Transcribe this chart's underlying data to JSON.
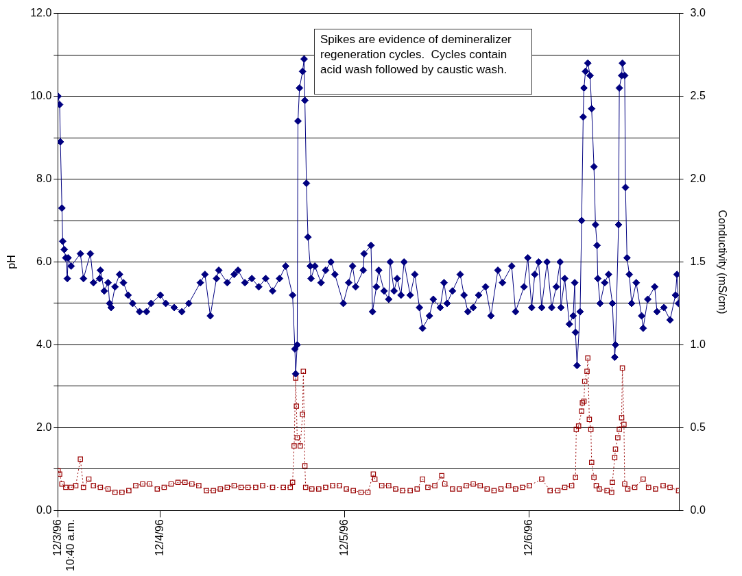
{
  "chart_data": {
    "type": "line",
    "ylabel": "pH",
    "y2label": "Conductivity (mS/cm)",
    "annotations": [
      "Spikes are evidence of demineralizer regeneration cycles.  Cycles contain acid wash followed by caustic wash."
    ],
    "xlim": [
      "1996-12-03T10:40",
      "1996-12-06T19:30"
    ],
    "xticks": [
      {
        "value": "1996-12-03T10:40",
        "label": "12/3/96\n10:40 a.m."
      },
      {
        "value": "1996-12-04",
        "label": "12/4/96"
      },
      {
        "value": "1996-12-05",
        "label": "12/5/96"
      },
      {
        "value": "1996-12-06",
        "label": "12/6/96"
      }
    ],
    "ylim": [
      0,
      12
    ],
    "yticks": [
      {
        "value": 0,
        "label": "0.0"
      },
      {
        "value": 1,
        "label": null
      },
      {
        "value": 2,
        "label": "2.0"
      },
      {
        "value": 3,
        "label": null
      },
      {
        "value": 4,
        "label": "4.0"
      },
      {
        "value": 5,
        "label": null
      },
      {
        "value": 6,
        "label": "6.0"
      },
      {
        "value": 7,
        "label": null
      },
      {
        "value": 8,
        "label": "8.0"
      },
      {
        "value": 9,
        "label": null
      },
      {
        "value": 10,
        "label": "10.0"
      },
      {
        "value": 11,
        "label": null
      },
      {
        "value": 12,
        "label": "12.0"
      }
    ],
    "y2lim": [
      0,
      3
    ],
    "y2ticks": [
      {
        "value": 0,
        "label": "0.0"
      },
      {
        "value": 0.5,
        "label": "0.5"
      },
      {
        "value": 1,
        "label": "1.0"
      },
      {
        "value": 1.5,
        "label": "1.5"
      },
      {
        "value": 2,
        "label": "2.0"
      },
      {
        "value": 2.5,
        "label": "2.5"
      },
      {
        "value": 3,
        "label": "3.0"
      }
    ],
    "grid": "y",
    "legend": false,
    "series": [
      {
        "color": "#000080",
        "marker": "diamond",
        "line_style": "solid",
        "x": [
          "1996-12-03T10:42",
          "1996-12-03T10:54",
          "1996-12-03T11:00",
          "1996-12-03T11:12",
          "1996-12-03T11:18",
          "1996-12-03T11:30",
          "1996-12-03T11:42",
          "1996-12-03T11:54",
          "1996-12-03T12:00",
          "1996-12-03T12:24",
          "1996-12-03T13:36",
          "1996-12-03T14:00",
          "1996-12-03T14:54",
          "1996-12-03T15:18",
          "1996-12-03T16:06",
          "1996-12-03T16:12",
          "1996-12-03T16:42",
          "1996-12-03T17:12",
          "1996-12-03T17:24",
          "1996-12-03T17:36",
          "1996-12-03T18:06",
          "1996-12-03T18:42",
          "1996-12-03T19:12",
          "1996-12-03T19:48",
          "1996-12-03T20:24",
          "1996-12-03T21:18",
          "1996-12-03T22:12",
          "1996-12-03T22:48",
          "1996-12-04T00:00",
          "1996-12-04T00:42",
          "1996-12-04T01:48",
          "1996-12-04T02:48",
          "1996-12-04T03:42",
          "1996-12-04T05:12",
          "1996-12-04T05:48",
          "1996-12-04T06:30",
          "1996-12-04T07:18",
          "1996-12-04T07:36",
          "1996-12-04T08:42",
          "1996-12-04T09:36",
          "1996-12-04T10:06",
          "1996-12-04T11:00",
          "1996-12-04T11:54",
          "1996-12-04T12:48",
          "1996-12-04T13:42",
          "1996-12-04T14:36",
          "1996-12-04T15:30",
          "1996-12-04T16:18",
          "1996-12-04T17:12",
          "1996-12-04T17:30",
          "1996-12-04T17:36",
          "1996-12-04T17:48",
          "1996-12-04T17:54",
          "1996-12-04T18:06",
          "1996-12-04T18:30",
          "1996-12-04T18:42",
          "1996-12-04T18:48",
          "1996-12-04T19:00",
          "1996-12-04T19:12",
          "1996-12-04T19:30",
          "1996-12-04T19:36",
          "1996-12-04T20:06",
          "1996-12-04T20:54",
          "1996-12-04T21:30",
          "1996-12-04T22:12",
          "1996-12-04T22:42",
          "1996-12-04T23:48",
          "1996-12-05T00:30",
          "1996-12-05T01:00",
          "1996-12-05T01:24",
          "1996-12-05T02:24",
          "1996-12-05T02:30",
          "1996-12-05T03:24",
          "1996-12-05T03:36",
          "1996-12-05T04:06",
          "1996-12-05T04:24",
          "1996-12-05T05:06",
          "1996-12-05T05:42",
          "1996-12-05T05:54",
          "1996-12-05T06:24",
          "1996-12-05T06:48",
          "1996-12-05T07:18",
          "1996-12-05T07:42",
          "1996-12-05T08:30",
          "1996-12-05T09:06",
          "1996-12-05T09:42",
          "1996-12-05T10:06",
          "1996-12-05T11:00",
          "1996-12-05T11:30",
          "1996-12-05T12:24",
          "1996-12-05T12:54",
          "1996-12-05T13:18",
          "1996-12-05T14:00",
          "1996-12-05T15:00",
          "1996-12-05T15:30",
          "1996-12-05T16:00",
          "1996-12-05T16:42",
          "1996-12-05T17:24",
          "1996-12-05T18:18",
          "1996-12-05T19:00",
          "1996-12-05T19:54",
          "1996-12-05T20:30",
          "1996-12-05T21:42",
          "1996-12-05T22:12",
          "1996-12-05T23:18",
          "1996-12-05T23:48",
          "1996-12-06T00:18",
          "1996-12-06T00:42",
          "1996-12-06T01:12",
          "1996-12-06T01:36",
          "1996-12-06T02:18",
          "1996-12-06T02:54",
          "1996-12-06T03:30",
          "1996-12-06T04:00",
          "1996-12-06T04:06",
          "1996-12-06T04:36",
          "1996-12-06T05:12",
          "1996-12-06T05:42",
          "1996-12-06T05:54",
          "1996-12-06T06:00",
          "1996-12-06T06:12",
          "1996-12-06T06:36",
          "1996-12-06T06:48",
          "1996-12-06T07:00",
          "1996-12-06T07:06",
          "1996-12-06T07:18",
          "1996-12-06T07:36",
          "1996-12-06T07:54",
          "1996-12-06T08:06",
          "1996-12-06T08:24",
          "1996-12-06T08:36",
          "1996-12-06T08:48",
          "1996-12-06T08:54",
          "1996-12-06T09:12",
          "1996-12-06T09:48",
          "1996-12-06T10:18",
          "1996-12-06T10:48",
          "1996-12-06T11:06",
          "1996-12-06T11:12",
          "1996-12-06T11:36",
          "1996-12-06T11:42",
          "1996-12-06T12:00",
          "1996-12-06T12:06",
          "1996-12-06T12:24",
          "1996-12-06T12:30",
          "1996-12-06T12:42",
          "1996-12-06T13:00",
          "1996-12-06T13:18",
          "1996-12-06T13:54",
          "1996-12-06T14:36",
          "1996-12-06T14:48",
          "1996-12-06T15:24",
          "1996-12-06T16:18",
          "1996-12-06T16:36",
          "1996-12-06T17:30",
          "1996-12-06T18:18",
          "1996-12-06T19:00",
          "1996-12-06T19:12",
          "1996-12-06T19:24"
        ],
        "values": [
          10.0,
          9.8,
          8.9,
          7.3,
          6.5,
          6.3,
          6.1,
          5.6,
          6.1,
          5.9,
          6.2,
          5.6,
          6.2,
          5.5,
          5.6,
          5.8,
          5.3,
          5.5,
          5.0,
          4.9,
          5.4,
          5.7,
          5.5,
          5.2,
          5.0,
          4.8,
          4.8,
          5.0,
          5.2,
          5.0,
          4.9,
          4.8,
          5.0,
          5.5,
          5.7,
          4.7,
          5.6,
          5.8,
          5.5,
          5.7,
          5.8,
          5.5,
          5.6,
          5.4,
          5.6,
          5.3,
          5.6,
          5.9,
          5.2,
          3.9,
          3.3,
          4.0,
          9.4,
          10.2,
          10.6,
          10.9,
          9.9,
          7.9,
          6.6,
          5.9,
          5.6,
          5.9,
          5.5,
          5.8,
          6.0,
          5.7,
          5.0,
          5.5,
          5.9,
          5.4,
          5.8,
          6.2,
          6.4,
          4.8,
          5.4,
          5.8,
          5.3,
          5.1,
          6.0,
          5.3,
          5.6,
          5.2,
          6.0,
          5.2,
          5.7,
          4.9,
          4.4,
          4.7,
          5.1,
          4.9,
          5.5,
          5.0,
          5.3,
          5.7,
          5.2,
          4.8,
          4.9,
          5.2,
          5.4,
          4.7,
          5.8,
          5.5,
          5.9,
          4.8,
          5.4,
          6.1,
          4.9,
          5.7,
          6.0,
          4.9,
          6.0,
          4.9,
          5.4,
          6.0,
          4.9,
          5.6,
          4.5,
          4.7,
          5.5,
          4.3,
          3.5,
          4.8,
          7.0,
          9.5,
          10.2,
          10.6,
          10.8,
          10.5,
          9.7,
          8.3,
          6.9,
          6.4,
          5.6,
          5.0,
          5.5,
          5.7,
          5.0,
          3.7,
          4.0,
          6.9,
          10.2,
          10.5,
          10.8,
          10.5,
          7.8,
          6.1,
          5.7,
          5.0,
          5.5,
          4.7,
          4.4,
          5.1,
          5.4,
          4.8,
          4.9,
          4.6,
          5.2,
          5.7,
          5.0
        ]
      },
      {
        "color": "#990000",
        "marker": "square",
        "line_style": "dotted",
        "axis": "y2",
        "x": [
          "1996-12-03T10:42",
          "1996-12-03T10:54",
          "1996-12-03T11:12",
          "1996-12-03T11:42",
          "1996-12-03T12:24",
          "1996-12-03T13:00",
          "1996-12-03T13:36",
          "1996-12-03T14:00",
          "1996-12-03T14:42",
          "1996-12-03T15:18",
          "1996-12-03T16:12",
          "1996-12-03T17:12",
          "1996-12-03T18:06",
          "1996-12-03T19:00",
          "1996-12-03T19:54",
          "1996-12-03T20:48",
          "1996-12-03T21:42",
          "1996-12-03T22:36",
          "1996-12-03T23:36",
          "1996-12-04T00:30",
          "1996-12-04T01:24",
          "1996-12-04T02:18",
          "1996-12-04T03:12",
          "1996-12-04T04:06",
          "1996-12-04T05:00",
          "1996-12-04T06:00",
          "1996-12-04T06:54",
          "1996-12-04T07:48",
          "1996-12-04T08:42",
          "1996-12-04T09:36",
          "1996-12-04T10:30",
          "1996-12-04T11:24",
          "1996-12-04T12:24",
          "1996-12-04T13:18",
          "1996-12-04T14:36",
          "1996-12-04T16:00",
          "1996-12-04T16:54",
          "1996-12-04T17:12",
          "1996-12-04T17:24",
          "1996-12-04T17:36",
          "1996-12-04T17:42",
          "1996-12-04T17:48",
          "1996-12-04T18:12",
          "1996-12-04T18:30",
          "1996-12-04T18:36",
          "1996-12-04T18:48",
          "1996-12-04T18:54",
          "1996-12-04T19:42",
          "1996-12-04T20:36",
          "1996-12-04T21:30",
          "1996-12-04T22:24",
          "1996-12-04T23:18",
          "1996-12-05T00:12",
          "1996-12-05T01:06",
          "1996-12-05T02:06",
          "1996-12-05T03:00",
          "1996-12-05T03:42",
          "1996-12-05T03:54",
          "1996-12-05T04:48",
          "1996-12-05T05:42",
          "1996-12-05T06:36",
          "1996-12-05T07:30",
          "1996-12-05T08:30",
          "1996-12-05T09:24",
          "1996-12-05T10:06",
          "1996-12-05T10:48",
          "1996-12-05T11:42",
          "1996-12-05T12:36",
          "1996-12-05T13:00",
          "1996-12-05T14:00",
          "1996-12-05T14:54",
          "1996-12-05T15:48",
          "1996-12-05T16:42",
          "1996-12-05T17:36",
          "1996-12-05T18:30",
          "1996-12-05T19:24",
          "1996-12-05T20:18",
          "1996-12-05T21:18",
          "1996-12-05T22:12",
          "1996-12-05T23:06",
          "1996-12-06T00:00",
          "1996-12-06T01:36",
          "1996-12-06T02:42",
          "1996-12-06T03:42",
          "1996-12-06T04:36",
          "1996-12-06T05:30",
          "1996-12-06T06:00",
          "1996-12-06T06:06",
          "1996-12-06T06:24",
          "1996-12-06T06:48",
          "1996-12-06T06:54",
          "1996-12-06T07:06",
          "1996-12-06T07:12",
          "1996-12-06T07:30",
          "1996-12-06T07:36",
          "1996-12-06T07:48",
          "1996-12-06T08:00",
          "1996-12-06T08:06",
          "1996-12-06T08:24",
          "1996-12-06T08:42",
          "1996-12-06T09:06",
          "1996-12-06T10:06",
          "1996-12-06T10:42",
          "1996-12-06T10:48",
          "1996-12-06T11:06",
          "1996-12-06T11:12",
          "1996-12-06T11:30",
          "1996-12-06T11:42",
          "1996-12-06T12:00",
          "1996-12-06T12:06",
          "1996-12-06T12:18",
          "1996-12-06T12:24",
          "1996-12-06T12:48",
          "1996-12-06T13:42",
          "1996-12-06T14:48",
          "1996-12-06T15:30",
          "1996-12-06T16:24",
          "1996-12-06T17:24",
          "1996-12-06T18:18",
          "1996-12-06T19:24"
        ],
        "values": [
          0.24,
          0.22,
          0.16,
          0.14,
          0.14,
          0.15,
          0.31,
          0.14,
          0.19,
          0.15,
          0.14,
          0.13,
          0.11,
          0.11,
          0.12,
          0.15,
          0.16,
          0.16,
          0.13,
          0.14,
          0.16,
          0.17,
          0.17,
          0.16,
          0.15,
          0.12,
          0.12,
          0.13,
          0.14,
          0.15,
          0.14,
          0.14,
          0.14,
          0.15,
          0.14,
          0.14,
          0.14,
          0.17,
          0.39,
          0.8,
          0.63,
          0.44,
          0.39,
          0.58,
          0.84,
          0.27,
          0.14,
          0.13,
          0.13,
          0.14,
          0.15,
          0.15,
          0.13,
          0.12,
          0.11,
          0.11,
          0.22,
          0.19,
          0.15,
          0.15,
          0.13,
          0.12,
          0.12,
          0.13,
          0.19,
          0.14,
          0.15,
          0.21,
          0.16,
          0.13,
          0.13,
          0.15,
          0.16,
          0.15,
          0.13,
          0.12,
          0.13,
          0.15,
          0.13,
          0.14,
          0.15,
          0.19,
          0.12,
          0.12,
          0.14,
          0.15,
          0.2,
          0.49,
          0.51,
          0.6,
          0.65,
          0.66,
          0.78,
          0.84,
          0.92,
          0.55,
          0.49,
          0.29,
          0.2,
          0.15,
          0.13,
          0.12,
          0.11,
          0.17,
          0.32,
          0.37,
          0.44,
          0.49,
          0.56,
          0.86,
          0.52,
          0.16,
          0.13,
          0.14,
          0.19,
          0.14,
          0.13,
          0.15,
          0.14,
          0.12
        ]
      }
    ]
  }
}
